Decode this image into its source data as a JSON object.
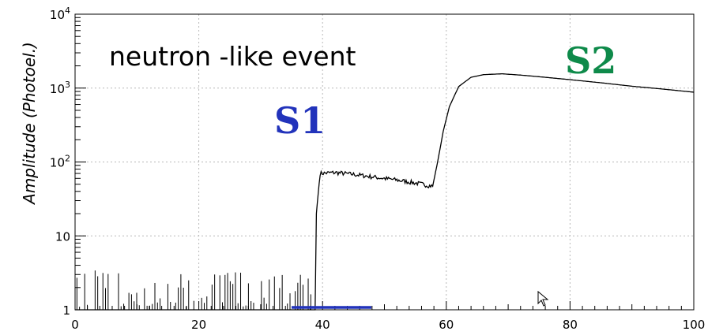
{
  "chart_data": {
    "type": "line",
    "title": "",
    "xlabel": "",
    "ylabel": "Amplitude (Photoel.)",
    "xlim": [
      0,
      100
    ],
    "ylim": [
      1,
      10000
    ],
    "yscale": "log",
    "grid": true,
    "x_ticks": [
      "0",
      "20",
      "40",
      "60",
      "80",
      "100"
    ],
    "y_ticks": [
      {
        "base": "1",
        "exp": ""
      },
      {
        "base": "10",
        "exp": ""
      },
      {
        "base": "10",
        "exp": "2"
      },
      {
        "base": "10",
        "exp": "3"
      },
      {
        "base": "10",
        "exp": "4"
      }
    ],
    "annotations": {
      "event_label": "neutron -like event",
      "s1_label": "S1",
      "s2_label": "S2"
    },
    "colors": {
      "s1": "#2233bb",
      "s2": "#0e8a4a",
      "line": "#000000",
      "grid": "#b8b8b8"
    },
    "series": [
      {
        "x": [
          0,
          38.8,
          39.0,
          39.6,
          42,
          45,
          48,
          52,
          55,
          57.8,
          58.6,
          59.5,
          60.5,
          62,
          64,
          66,
          69,
          72,
          76,
          80,
          85,
          90,
          95,
          100
        ],
        "y": [
          1,
          1,
          20,
          70,
          72,
          68,
          63,
          57,
          52,
          47,
          100,
          260,
          560,
          1050,
          1400,
          1520,
          1560,
          1500,
          1400,
          1300,
          1180,
          1060,
          970,
          880
        ]
      }
    ]
  }
}
